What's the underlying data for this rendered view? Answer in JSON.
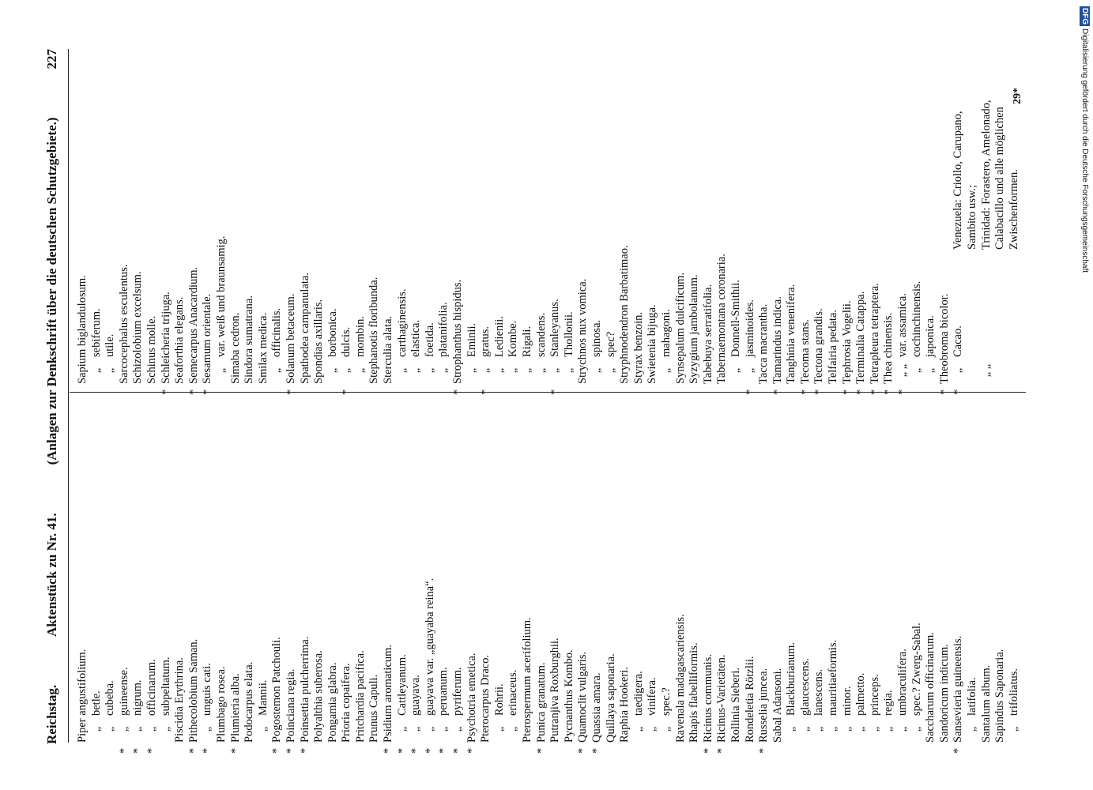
{
  "header": {
    "left": "Reichstag.",
    "center": "Aktenstück zu Nr. 41.",
    "subtitle": "(Anlagen zur Denkschrift über die deutschen Schutzgebiete.)",
    "page_number": "227"
  },
  "columns": [
    {
      "entries": [
        {
          "name": "Piper angustifolium."
        },
        {
          "ditto": "„",
          "name": "betle."
        },
        {
          "ditto": "„",
          "name": "cubeba."
        },
        {
          "star": "*",
          "ditto": "„",
          "name": "guineense."
        },
        {
          "star": "*",
          "ditto": "„",
          "name": "nigrum."
        },
        {
          "star": "*",
          "ditto": "„",
          "name": "officinarum."
        },
        {
          "ditto": "„",
          "name": "subpeltatum."
        },
        {
          "name": "Piscidia Erythrina."
        },
        {
          "star": "*",
          "name": "Pithecolobium Saman."
        },
        {
          "star": "*",
          "ditto": "„",
          "name": "unguis cati."
        },
        {
          "name": "Plumbago rosea."
        },
        {
          "star": "*",
          "name": "Plumieria alba."
        },
        {
          "name": "Podocarpus elata."
        },
        {
          "ditto": "„",
          "name": "Mannii."
        },
        {
          "star": "*",
          "name": "Pogostemon Patchouli."
        },
        {
          "star": "*",
          "name": "Poinciana regia."
        },
        {
          "star": "*",
          "name": "Poinsettia pulcherrima."
        },
        {
          "name": "Polyalthia suberosa."
        },
        {
          "name": "Pongamia glabra."
        },
        {
          "name": "Prioria copaifera."
        },
        {
          "name": "Pritchardia pacifica."
        },
        {
          "name": "Prunus Capuli."
        },
        {
          "star": "*",
          "name": "Psidium aromaticum."
        },
        {
          "star": "*",
          "ditto": "„",
          "name": "Cattleyanum."
        },
        {
          "star": "*",
          "ditto": "„",
          "name": "guayava."
        },
        {
          "star": "*",
          "ditto": "„",
          "name": "guayava var. „guayaba reina“."
        },
        {
          "star": "*",
          "ditto": "„",
          "name": "peruanum."
        },
        {
          "star": "*",
          "ditto": "„",
          "name": "pyriferum."
        },
        {
          "star": "*",
          "name": "Psychotria emetica."
        },
        {
          "name": "Pterocarpus Draco."
        },
        {
          "ditto": "„",
          "name": "Rohrii."
        },
        {
          "ditto": "„",
          "name": "erinaceus."
        },
        {
          "name": "Pterospermum acerifolium."
        },
        {
          "star": "*",
          "name": "Punica granatum."
        },
        {
          "name": "Putranjiva Roxburghii."
        },
        {
          "name": "Pycnanthus Kombo."
        },
        {
          "star": "*",
          "name": "Quamoclit vulgaris."
        },
        {
          "star": "*",
          "name": "Quassia amara."
        },
        {
          "name": "Quillaya saponaria."
        },
        {
          "name": "Raphia Hookeri."
        },
        {
          "ditto": "„",
          "name": "taedigera."
        },
        {
          "ditto": "„",
          "name": "vinifera."
        },
        {
          "ditto": "„",
          "name": "spec.?"
        },
        {
          "name": "Ravenala madagascariensis."
        },
        {
          "name": "Rhapis flabelliformis."
        },
        {
          "star": "*",
          "name": "Ricinus communis."
        },
        {
          "star": "*",
          "name": "Ricinus-Varietäten."
        },
        {
          "name": "Rollinia Sieberi."
        },
        {
          "name": "Rondeletia Rötzlii."
        },
        {
          "star": "*",
          "name": "Russelia juncea."
        },
        {
          "name": "Sabal Adansoni."
        },
        {
          "ditto": "„",
          "name": "Blackburianum."
        },
        {
          "ditto": "„",
          "name": "glaucescens."
        },
        {
          "ditto": "„",
          "name": "lanescens."
        },
        {
          "ditto": "„",
          "name": "mauritiaeformis."
        },
        {
          "ditto": "„",
          "name": "minor."
        },
        {
          "ditto": "„",
          "name": "palmetto."
        },
        {
          "ditto": "„",
          "name": "princeps."
        },
        {
          "ditto": "„",
          "name": "regia."
        },
        {
          "ditto": "„",
          "name": "umbraculifera."
        },
        {
          "ditto": "„",
          "name": "spec.? Zwerg-Sabal."
        },
        {
          "name": "Saccharum officinarum."
        },
        {
          "name": "Sandoricum indicum."
        },
        {
          "star": "*",
          "name": "Sansevieria guineensis."
        },
        {
          "ditto": "„",
          "name": "latifolia."
        },
        {
          "name": "Santalum album."
        },
        {
          "name": "Sapindus Saponaria."
        },
        {
          "ditto": "„",
          "name": "trifoliatus."
        }
      ]
    },
    {
      "entries": [
        {
          "name": "Sapium biglandulosum."
        },
        {
          "ditto": "„",
          "name": "sebiferum."
        },
        {
          "ditto": "„",
          "name": "utile."
        },
        {
          "name": "Sarcocephalus esculentus."
        },
        {
          "name": "Schizolobium excelsum."
        },
        {
          "name": "Schinus molle."
        },
        {
          "star": "*",
          "name": "Schleicheria trijuga."
        },
        {
          "name": "Seaforthia elegans."
        },
        {
          "star": "*",
          "name": "Semecarpus Anacardium."
        },
        {
          "star": "*",
          "name": "Sesamum orientale."
        },
        {
          "ditto": "„",
          "name": "var. weiß und braunsamig."
        },
        {
          "name": "Simaba cedron."
        },
        {
          "name": "Sindora sumatrana."
        },
        {
          "name": "Smilax medica."
        },
        {
          "ditto": "„",
          "name": "officinalis."
        },
        {
          "star": "*",
          "name": "Solanum betaceum."
        },
        {
          "name": "Spathodea campanulata."
        },
        {
          "name": "Spondias axillaris."
        },
        {
          "ditto": "„",
          "name": "borbonica."
        },
        {
          "star": "*",
          "ditto": "„",
          "name": "dulcis."
        },
        {
          "ditto": "„",
          "name": "mombin."
        },
        {
          "name": "Stephanotis floribunda."
        },
        {
          "name": "Sterculia alata."
        },
        {
          "ditto": "„",
          "name": "carthaginensis."
        },
        {
          "ditto": "„",
          "name": "elastica."
        },
        {
          "ditto": "„",
          "name": "foetida."
        },
        {
          "ditto": "„",
          "name": "platanifolia."
        },
        {
          "star": "*",
          "name": "Strophanthus hispidus."
        },
        {
          "ditto": "„",
          "name": "Eminii."
        },
        {
          "star": "*",
          "ditto": "„",
          "name": "gratus."
        },
        {
          "ditto": "„",
          "name": "Ledienii."
        },
        {
          "ditto": "„",
          "name": "Kombe."
        },
        {
          "ditto": "„",
          "name": "Rigali."
        },
        {
          "ditto": "„",
          "name": "scandens."
        },
        {
          "star": "*",
          "ditto": "„",
          "name": "Stanleyanus."
        },
        {
          "ditto": "„",
          "name": "Thollonii."
        },
        {
          "name": "Strychnos nux vomica."
        },
        {
          "ditto": "„",
          "name": "spinosa."
        },
        {
          "ditto": "„",
          "name": "spec?"
        },
        {
          "name": "Stryphnodendron Barbatimao."
        },
        {
          "name": "Styrax benzoin."
        },
        {
          "name": "Swietenia bijuga."
        },
        {
          "ditto": "„",
          "name": "mahagoni."
        },
        {
          "name": "Synsepalum dulcificum."
        },
        {
          "name": "Syzygium jambolanum."
        },
        {
          "name": "Tabebuya serratifolia."
        },
        {
          "name": "Tabernaemontana coronaria."
        },
        {
          "ditto": "„",
          "name": "Donnell-Smithii."
        },
        {
          "star": "*",
          "ditto": "„",
          "name": "jasminoides."
        },
        {
          "name": "Tacca macrantha."
        },
        {
          "star": "*",
          "name": "Tamarindus indica."
        },
        {
          "name": "Tanghinia venenifera."
        },
        {
          "star": "*",
          "name": "Tecoma stans."
        },
        {
          "star": "*",
          "name": "Tectona grandis."
        },
        {
          "name": "Telfairia pedata."
        },
        {
          "star": "*",
          "name": "Tephrosia Vogelii."
        },
        {
          "star": "*",
          "name": "Terminalia Catappa."
        },
        {
          "star": "*",
          "name": "Tetrapleura tetraptera."
        },
        {
          "star": "*",
          "name": "Thea chinensis."
        },
        {
          "star": "*",
          "ditto": "„ „",
          "name": "var. assamica."
        },
        {
          "ditto": "„",
          "name": "cochinchinensis."
        },
        {
          "ditto": "„",
          "name": "japonica."
        },
        {
          "star": "*",
          "name": "Theobroma bicolor."
        },
        {
          "star": "*",
          "ditto": "„",
          "name": "Cacao.",
          "note": [
            "Venezuela: Criollo, Carupano,",
            "Sambito usw.;"
          ]
        },
        {
          "ditto": "„ „",
          "note": [
            "Trinidad: Forastero, Amelonado,",
            "Calabacillo und alle möglichen",
            "Zwischenformen."
          ]
        }
      ]
    }
  ],
  "signature": "29*",
  "margin": {
    "text": "Digitalisierung gefördert durch die Deutsche Forschungsgemeinschaft",
    "logo": "DFG"
  }
}
